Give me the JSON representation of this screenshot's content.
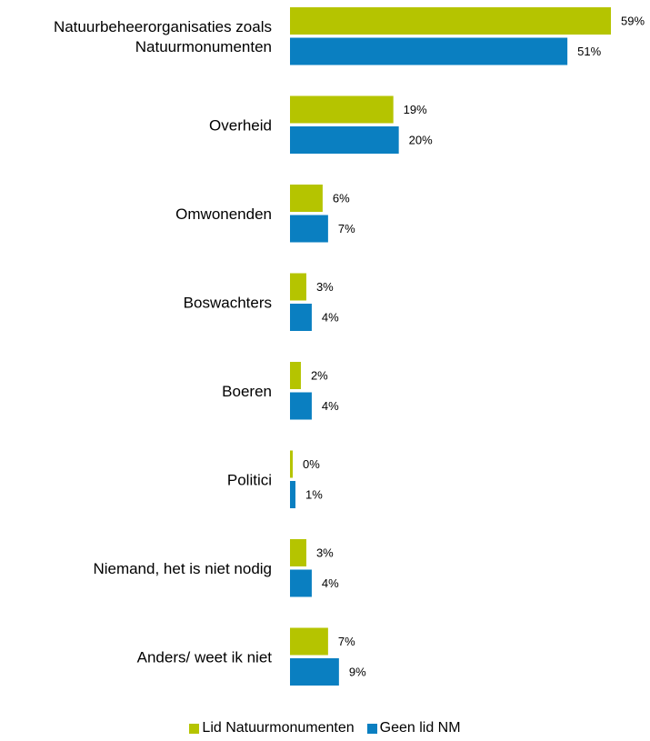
{
  "chart_data": {
    "type": "bar",
    "orientation": "horizontal",
    "categories": [
      [
        "Natuurbeheerorganisaties zoals",
        "Natuurmonumenten"
      ],
      [
        "Overheid"
      ],
      [
        "Omwonenden"
      ],
      [
        "Boswachters"
      ],
      [
        "Boeren"
      ],
      [
        "Politici"
      ],
      [
        "Niemand, het is niet nodig"
      ],
      [
        "Anders/ weet ik niet"
      ]
    ],
    "series": [
      {
        "name": "Lid Natuurmonumenten",
        "color": "#b5c400",
        "values": [
          59,
          19,
          6,
          3,
          2,
          0,
          3,
          7
        ],
        "labels": [
          "59%",
          "19%",
          "6%",
          "3%",
          "2%",
          "0%",
          "3%",
          "7%"
        ]
      },
      {
        "name": "Geen lid NM",
        "color": "#0a7fc1",
        "values": [
          51,
          20,
          7,
          4,
          4,
          1,
          4,
          9
        ],
        "labels": [
          "51%",
          "20%",
          "7%",
          "4%",
          "4%",
          "1%",
          "4%",
          "9%"
        ]
      }
    ],
    "xlim": [
      0,
      59
    ],
    "legend_position": "bottom",
    "grid": false
  }
}
